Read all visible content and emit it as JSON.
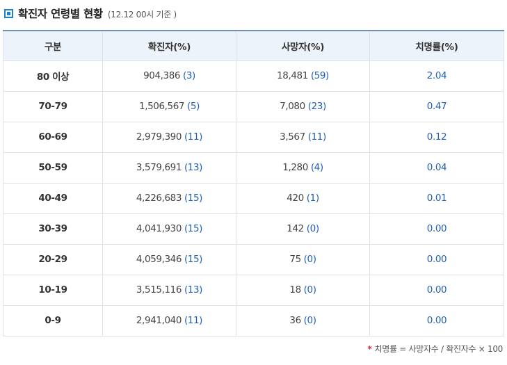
{
  "header": {
    "title": "확진자 연령별 현황",
    "subtitle": "(12.12 00시 기준 )",
    "accent_color": "#1a84c7"
  },
  "table": {
    "columns": [
      "구분",
      "확진자(%)",
      "사망자(%)",
      "치명률(%)"
    ],
    "rows": [
      {
        "age": "80 이상",
        "cases": "904,386",
        "cases_pct": "(3)",
        "deaths": "18,481",
        "deaths_pct": "(59)",
        "rate": "2.04"
      },
      {
        "age": "70-79",
        "cases": "1,506,567",
        "cases_pct": "(5)",
        "deaths": "7,080",
        "deaths_pct": "(23)",
        "rate": "0.47"
      },
      {
        "age": "60-69",
        "cases": "2,979,390",
        "cases_pct": "(11)",
        "deaths": "3,567",
        "deaths_pct": "(11)",
        "rate": "0.12"
      },
      {
        "age": "50-59",
        "cases": "3,579,691",
        "cases_pct": "(13)",
        "deaths": "1,280",
        "deaths_pct": "(4)",
        "rate": "0.04"
      },
      {
        "age": "40-49",
        "cases": "4,226,683",
        "cases_pct": "(15)",
        "deaths": "420",
        "deaths_pct": "(1)",
        "rate": "0.01"
      },
      {
        "age": "30-39",
        "cases": "4,041,930",
        "cases_pct": "(15)",
        "deaths": "142",
        "deaths_pct": "(0)",
        "rate": "0.00"
      },
      {
        "age": "20-29",
        "cases": "4,059,346",
        "cases_pct": "(15)",
        "deaths": "75",
        "deaths_pct": "(0)",
        "rate": "0.00"
      },
      {
        "age": "10-19",
        "cases": "3,515,116",
        "cases_pct": "(13)",
        "deaths": "18",
        "deaths_pct": "(0)",
        "rate": "0.00"
      },
      {
        "age": "0-9",
        "cases": "2,941,040",
        "cases_pct": "(11)",
        "deaths": "36",
        "deaths_pct": "(0)",
        "rate": "0.00"
      }
    ]
  },
  "footnote": {
    "asterisk": "*",
    "text": "치명률 = 사망자수 / 확진자수 × 100"
  }
}
